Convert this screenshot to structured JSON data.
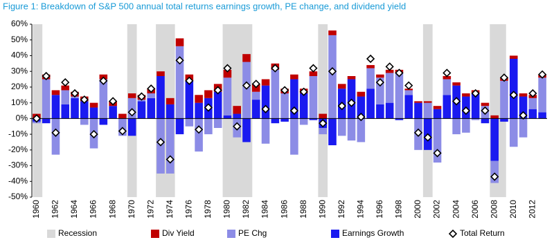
{
  "chart_data": {
    "type": "bar",
    "stacked": true,
    "title": "Figure 1: Breakdown of S&P 500 annual total returns earnings growth, PE change, and dividend yield",
    "categories": [
      "1960",
      null,
      "1962",
      null,
      "1964",
      null,
      "1966",
      null,
      "1968",
      null,
      "1970",
      null,
      "1972",
      null,
      "1974",
      null,
      "1976",
      null,
      "1978",
      null,
      "1980",
      null,
      "1982",
      null,
      "1984",
      null,
      "1986",
      null,
      "1988",
      null,
      "1990",
      null,
      "1992",
      null,
      "1994",
      null,
      "1996",
      null,
      "1998",
      null,
      "2000",
      null,
      "2002",
      null,
      "2004",
      null,
      "2006",
      null,
      "2008",
      null,
      "2010",
      null,
      "2012",
      null
    ],
    "series": [
      {
        "name": "Earnings Growth",
        "color": "#1a1af0",
        "values": [
          -2,
          -3,
          15,
          9,
          13,
          11,
          7,
          -4,
          8,
          0,
          -11,
          11,
          13,
          27,
          9,
          -10,
          24,
          10,
          13,
          17,
          2,
          3,
          -15,
          12,
          21,
          -3,
          -2,
          25,
          16,
          -1,
          -6,
          -17,
          19,
          25,
          14,
          19,
          9,
          10,
          -1,
          15,
          10,
          -20,
          6,
          15,
          21,
          14,
          16,
          -3,
          -27,
          -2,
          38,
          14,
          6,
          4
        ]
      },
      {
        "name": "PE Chg",
        "color": "#8c8ce6",
        "values": [
          -1,
          25,
          -23,
          9,
          1,
          -4,
          -19,
          25,
          0,
          -11,
          13,
          1,
          3,
          -35,
          -35,
          46,
          -5,
          -21,
          -10,
          -6,
          24,
          -12,
          36,
          5,
          -16,
          31,
          16,
          -23,
          -4,
          27,
          -4,
          53,
          -11,
          -14,
          -15,
          13,
          17,
          19,
          29,
          3,
          -20,
          10,
          -28,
          10,
          -10,
          -9,
          -1,
          8,
          -14,
          24,
          -18,
          -12,
          7,
          22
        ]
      },
      {
        "name": "Div Yield",
        "color": "#c00000",
        "values": [
          3,
          3,
          3,
          3,
          3,
          3,
          3,
          3,
          3,
          3,
          3,
          3,
          3,
          3,
          4,
          5,
          4,
          5,
          5,
          5,
          5,
          5,
          5,
          5,
          4,
          4,
          3,
          3,
          3,
          3,
          3,
          3,
          3,
          2,
          3,
          2,
          2,
          2,
          2,
          1,
          1,
          1,
          2,
          2,
          2,
          2,
          2,
          2,
          2,
          2,
          2,
          2,
          2,
          2
        ]
      },
      {
        "name": "Total Return",
        "color": "#000000",
        "type": "scatter",
        "marker": "diamond",
        "values": [
          0,
          27,
          -9,
          23,
          16,
          12,
          -10,
          24,
          11,
          -8,
          4,
          14,
          19,
          -15,
          -26,
          37,
          24,
          -7,
          7,
          18,
          32,
          -5,
          21,
          22,
          6,
          32,
          18,
          5,
          17,
          32,
          -3,
          30,
          8,
          10,
          1,
          38,
          23,
          33,
          29,
          21,
          -9,
          -12,
          -22,
          29,
          11,
          5,
          16,
          5,
          -37,
          26,
          15,
          2,
          16,
          28
        ]
      }
    ],
    "recessions": {
      "name": "Recession",
      "color": "#d9d9d9",
      "ranges": [
        [
          1959.6,
          1960.6
        ],
        [
          1969.5,
          1970.5
        ],
        [
          1972.5,
          1974.5
        ],
        [
          1979.5,
          1982.6
        ],
        [
          1989.5,
          1990.5
        ],
        [
          2000.5,
          2001.5
        ],
        [
          2007.5,
          2009.2
        ]
      ]
    },
    "ylim": [
      -50,
      60
    ],
    "yticks": [
      {
        "value": -50,
        "label": "-50%"
      },
      {
        "value": -40,
        "label": "-40%"
      },
      {
        "value": -30,
        "label": "-30%"
      },
      {
        "value": -20,
        "label": "-20%"
      },
      {
        "value": -10,
        "label": "-10%"
      },
      {
        "value": 0,
        "label": "0%"
      },
      {
        "value": 10,
        "label": "10%"
      },
      {
        "value": 20,
        "label": "20%"
      },
      {
        "value": 30,
        "label": "30%"
      },
      {
        "value": 40,
        "label": "40%"
      },
      {
        "value": 50,
        "label": "50%"
      },
      {
        "value": 60,
        "label": "60%"
      }
    ],
    "grid": false
  }
}
